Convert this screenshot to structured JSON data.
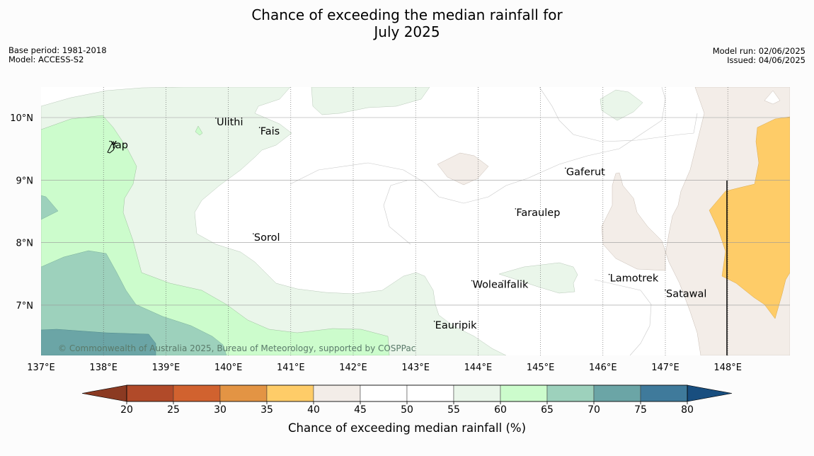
{
  "title": {
    "line1": "Chance of exceeding the median rainfall for",
    "line2": "July 2025"
  },
  "meta_left": {
    "base_period": "Base period: 1981-2018",
    "model": "Model: ACCESS-S2"
  },
  "meta_right": {
    "model_run": "Model run: 02/06/2025",
    "issued": "Issued: 04/06/2025"
  },
  "map": {
    "lon_range": [
      137,
      149
    ],
    "lat_range": [
      6.2,
      10.5
    ],
    "lat_labels": [
      "10°N",
      "9°N",
      "8°N",
      "7°N"
    ],
    "lon_labels": [
      "137°E",
      "138°E",
      "139°E",
      "140°E",
      "141°E",
      "142°E",
      "143°E",
      "144°E",
      "145°E",
      "146°E",
      "147°E",
      "148°E"
    ],
    "places": [
      {
        "name": "Ulithi",
        "lon": 139.8,
        "lat": 9.9
      },
      {
        "name": "Fais",
        "lon": 140.5,
        "lat": 9.75
      },
      {
        "name": "Yap",
        "lon": 138.1,
        "lat": 9.53
      },
      {
        "name": "Gaferut",
        "lon": 145.4,
        "lat": 9.1
      },
      {
        "name": "Faraulep",
        "lon": 144.6,
        "lat": 8.45
      },
      {
        "name": "Sorol",
        "lon": 140.4,
        "lat": 8.05
      },
      {
        "name": "Lamotrek",
        "lon": 146.1,
        "lat": 7.4
      },
      {
        "name": "Woleai",
        "lon": 143.9,
        "lat": 7.3
      },
      {
        "name": "Ifalik",
        "lon": 144.4,
        "lat": 7.3
      },
      {
        "name": "Satawal",
        "lon": 147.0,
        "lat": 7.15
      },
      {
        "name": "Eauripik",
        "lon": 143.3,
        "lat": 6.65
      }
    ],
    "copyright": "© Commonwealth of Australia 2025, Bureau of Meteorology, supported by COSPPac"
  },
  "colorbar": {
    "title": "Chance of exceeding median rainfall (%)",
    "ticks": [
      "20",
      "25",
      "30",
      "35",
      "40",
      "45",
      "50",
      "55",
      "60",
      "65",
      "70",
      "75",
      "80"
    ],
    "under_color": "#8b3a22",
    "over_color": "#184e7f",
    "colors": [
      "#b14a29",
      "#d1622f",
      "#e39444",
      "#fecc68",
      "#f3ede8",
      "#ffffff",
      "#ffffff",
      "#eaf6ea",
      "#ccfccc",
      "#9dd1bc",
      "#6ba5a6",
      "#3f7a9b"
    ]
  },
  "colors": {
    "level_55_60": "#eaf6ea",
    "level_60_65": "#ccfccc",
    "level_65_70": "#9dd1bc",
    "level_70_75": "#6ba5a6",
    "level_40_45": "#f3ede8",
    "level_35_40": "#fecc68"
  }
}
